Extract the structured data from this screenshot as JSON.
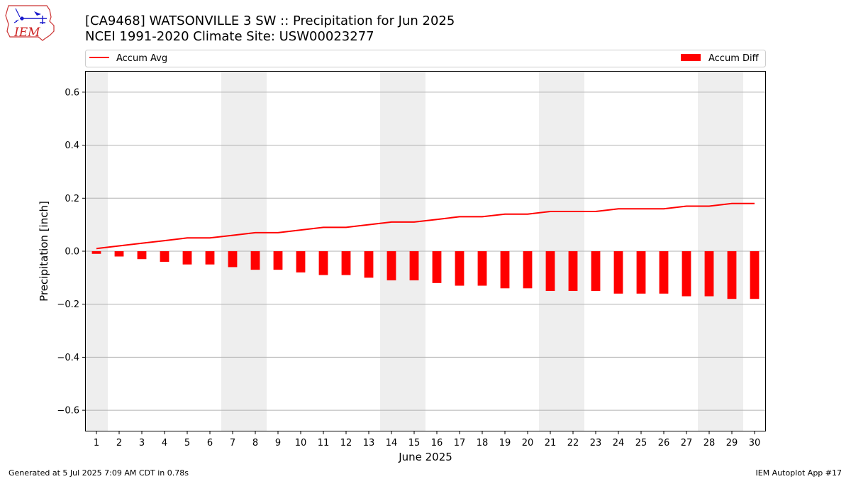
{
  "header": {
    "title_line1": "[CA9468] WATSONVILLE 3 SW :: Precipitation for Jun 2025",
    "title_line2": "NCEI 1991-2020 Climate Site: USW00023277",
    "logo_text": "IEM"
  },
  "footer": {
    "left": "Generated at 5 Jul 2025 7:09 AM CDT in 0.78s",
    "right": "IEM Autoplot App #17"
  },
  "colors": {
    "series": "#ff0000",
    "weekend_shade": "#eeeeee",
    "grid": "#b0b0b0",
    "axis": "#000000"
  },
  "chart_data": {
    "type": "bar",
    "xlabel": "June 2025",
    "ylabel": "Precipitation [inch]",
    "ylim": [
      -0.68,
      0.68
    ],
    "yticks": [
      -0.6,
      -0.4,
      -0.2,
      0.0,
      0.2,
      0.4,
      0.6
    ],
    "ytick_labels": [
      "−0.6",
      "−0.4",
      "−0.2",
      "0.0",
      "0.2",
      "0.4",
      "0.6"
    ],
    "x": [
      1,
      2,
      3,
      4,
      5,
      6,
      7,
      8,
      9,
      10,
      11,
      12,
      13,
      14,
      15,
      16,
      17,
      18,
      19,
      20,
      21,
      22,
      23,
      24,
      25,
      26,
      27,
      28,
      29,
      30
    ],
    "xtick_labels": [
      "1",
      "2",
      "3",
      "4",
      "5",
      "6",
      "7",
      "8",
      "9",
      "10",
      "11",
      "12",
      "13",
      "14",
      "15",
      "16",
      "17",
      "18",
      "19",
      "20",
      "21",
      "22",
      "23",
      "24",
      "25",
      "26",
      "27",
      "28",
      "29",
      "30"
    ],
    "grid": "y",
    "legend_placement": "top (above plot)",
    "shaded_days": [
      1,
      7,
      8,
      14,
      15,
      21,
      22,
      28,
      29
    ],
    "series": [
      {
        "name": "Accum Avg",
        "type": "line",
        "values": [
          0.01,
          0.02,
          0.03,
          0.04,
          0.05,
          0.05,
          0.06,
          0.07,
          0.07,
          0.08,
          0.09,
          0.09,
          0.1,
          0.11,
          0.11,
          0.12,
          0.13,
          0.13,
          0.14,
          0.14,
          0.15,
          0.15,
          0.15,
          0.16,
          0.16,
          0.16,
          0.17,
          0.17,
          0.18,
          0.18
        ]
      },
      {
        "name": "Accum Diff",
        "type": "bar",
        "values": [
          -0.01,
          -0.02,
          -0.03,
          -0.04,
          -0.05,
          -0.05,
          -0.06,
          -0.07,
          -0.07,
          -0.08,
          -0.09,
          -0.09,
          -0.1,
          -0.11,
          -0.11,
          -0.12,
          -0.13,
          -0.13,
          -0.14,
          -0.14,
          -0.15,
          -0.15,
          -0.15,
          -0.16,
          -0.16,
          -0.16,
          -0.17,
          -0.17,
          -0.18,
          -0.18
        ]
      }
    ]
  }
}
